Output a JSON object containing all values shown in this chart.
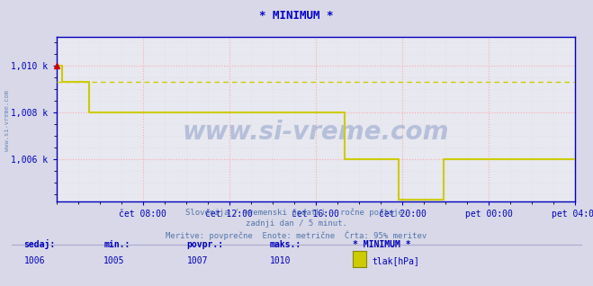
{
  "title": "* MINIMUM *",
  "title_color": "#0000cc",
  "bg_color": "#d8d8e8",
  "plot_bg_color": "#e8e8f0",
  "line_color": "#cccc00",
  "grid_color_major": "#ffaaaa",
  "grid_color_minor": "#dddddd",
  "axis_color": "#0000bb",
  "tick_color": "#0000bb",
  "ylim": [
    1004.2,
    1011.2
  ],
  "yticks": [
    1006,
    1008,
    1010
  ],
  "ytick_labels": [
    "1,006 k",
    "1,008 k",
    "1,010 k"
  ],
  "xlabel_color": "#0000bb",
  "watermark_text": "www.si-vreme.com",
  "watermark_color": "#4466aa",
  "left_label": "www.si-vreme.com",
  "left_label_color": "#5577aa",
  "subtitle1": "Slovenija / vremenski podatki - ročne postaje.",
  "subtitle2": "zadnji dan / 5 minut.",
  "subtitle3": "Meritve: povprečne  Enote: metrične  Črta: 95% meritev",
  "subtitle_color": "#5577aa",
  "footer_labels": [
    "sedaj:",
    "min.:",
    "povpr.:",
    "maks.:",
    "* MINIMUM *"
  ],
  "footer_values": [
    "1006",
    "1005",
    "1007",
    "1010"
  ],
  "footer_legend_color": "#cccc00",
  "footer_legend_label": "tlak[hPa]",
  "footer_color": "#0000bb",
  "xtick_labels": [
    "čet 08:00",
    "čet 12:00",
    "čet 16:00",
    "čet 20:00",
    "pet 00:00",
    "pet 04:00"
  ],
  "xmin": 0,
  "xmax": 288,
  "xtick_positions": [
    48,
    96,
    144,
    192,
    240,
    288
  ],
  "data_x": [
    0,
    3,
    3,
    18,
    18,
    160,
    160,
    190,
    190,
    215,
    215,
    222,
    222,
    288
  ],
  "data_y": [
    1010,
    1010,
    1009.3,
    1009.3,
    1008,
    1008,
    1006,
    1006,
    1004.3,
    1004.3,
    1006,
    1006,
    1006,
    1006
  ],
  "dashed_y": 1009.3,
  "dashed_color": "#cccc00",
  "marker_x": 0,
  "marker_y": 1010,
  "marker_color": "#cc0000"
}
